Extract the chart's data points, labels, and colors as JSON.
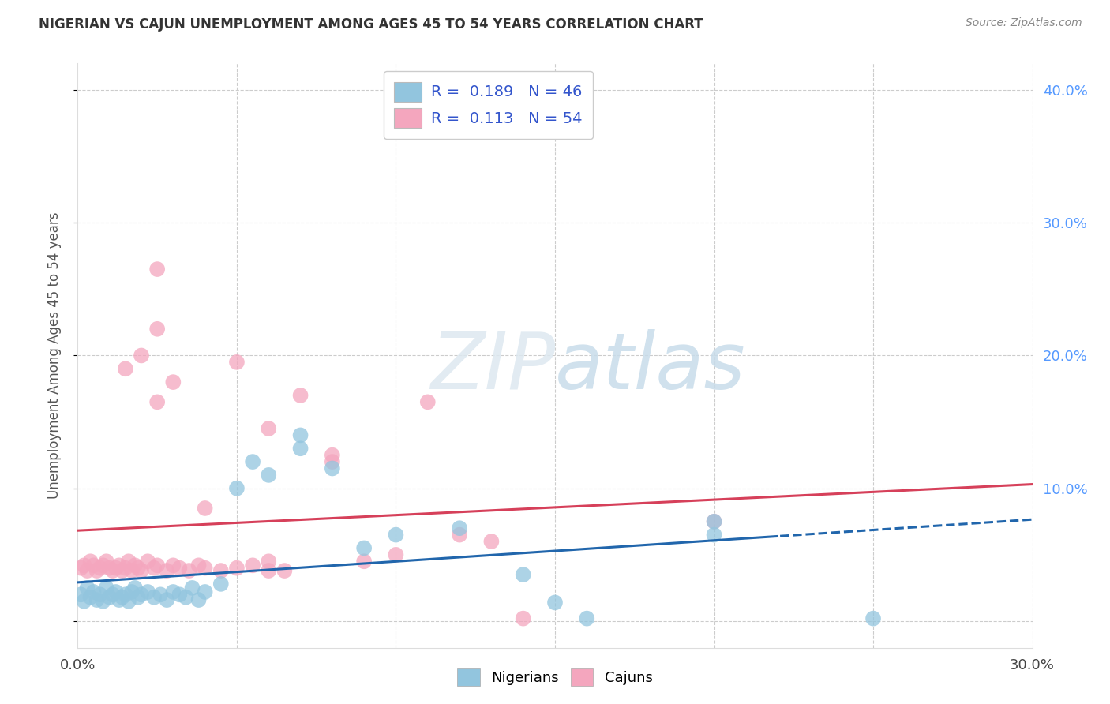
{
  "title": "NIGERIAN VS CAJUN UNEMPLOYMENT AMONG AGES 45 TO 54 YEARS CORRELATION CHART",
  "source": "Source: ZipAtlas.com",
  "ylabel": "Unemployment Among Ages 45 to 54 years",
  "xlim": [
    0.0,
    0.3
  ],
  "ylim": [
    -0.02,
    0.42
  ],
  "nigerians_color": "#92c5de",
  "cajuns_color": "#f4a6be",
  "nigerians_line_color": "#2166ac",
  "cajuns_line_color": "#d6405a",
  "R_nigerians": "0.189",
  "N_nigerians": "46",
  "R_cajuns": "0.113",
  "N_cajuns": "54",
  "watermark_zip": "ZIP",
  "watermark_atlas": "atlas",
  "nigerians_x": [
    0.001,
    0.002,
    0.003,
    0.004,
    0.005,
    0.006,
    0.007,
    0.008,
    0.009,
    0.01,
    0.011,
    0.012,
    0.013,
    0.014,
    0.015,
    0.016,
    0.017,
    0.018,
    0.019,
    0.02,
    0.022,
    0.024,
    0.026,
    0.028,
    0.03,
    0.032,
    0.034,
    0.036,
    0.038,
    0.04,
    0.045,
    0.05,
    0.055,
    0.06,
    0.07,
    0.08,
    0.09,
    0.1,
    0.12,
    0.14,
    0.16,
    0.2,
    0.25,
    0.2,
    0.15,
    0.07
  ],
  "nigerians_y": [
    0.02,
    0.015,
    0.025,
    0.018,
    0.022,
    0.016,
    0.02,
    0.015,
    0.025,
    0.018,
    0.02,
    0.022,
    0.016,
    0.018,
    0.02,
    0.015,
    0.022,
    0.025,
    0.018,
    0.02,
    0.022,
    0.018,
    0.02,
    0.016,
    0.022,
    0.02,
    0.018,
    0.025,
    0.016,
    0.022,
    0.028,
    0.1,
    0.12,
    0.11,
    0.13,
    0.115,
    0.055,
    0.065,
    0.07,
    0.035,
    0.002,
    0.065,
    0.002,
    0.075,
    0.014,
    0.14
  ],
  "cajuns_x": [
    0.001,
    0.002,
    0.003,
    0.004,
    0.005,
    0.006,
    0.007,
    0.008,
    0.009,
    0.01,
    0.011,
    0.012,
    0.013,
    0.014,
    0.015,
    0.016,
    0.017,
    0.018,
    0.019,
    0.02,
    0.022,
    0.024,
    0.025,
    0.028,
    0.03,
    0.032,
    0.035,
    0.038,
    0.04,
    0.045,
    0.05,
    0.055,
    0.06,
    0.065,
    0.07,
    0.08,
    0.09,
    0.1,
    0.12,
    0.14,
    0.03,
    0.025,
    0.05,
    0.06,
    0.11,
    0.08,
    0.2,
    0.13,
    0.025,
    0.02,
    0.015,
    0.025,
    0.04,
    0.06
  ],
  "cajuns_y": [
    0.04,
    0.042,
    0.038,
    0.045,
    0.042,
    0.038,
    0.04,
    0.042,
    0.045,
    0.04,
    0.038,
    0.04,
    0.042,
    0.038,
    0.04,
    0.045,
    0.038,
    0.042,
    0.04,
    0.038,
    0.045,
    0.04,
    0.042,
    0.038,
    0.042,
    0.04,
    0.038,
    0.042,
    0.04,
    0.038,
    0.04,
    0.042,
    0.045,
    0.038,
    0.17,
    0.12,
    0.045,
    0.05,
    0.065,
    0.002,
    0.18,
    0.22,
    0.195,
    0.145,
    0.165,
    0.125,
    0.075,
    0.06,
    0.265,
    0.2,
    0.19,
    0.165,
    0.085,
    0.038
  ]
}
